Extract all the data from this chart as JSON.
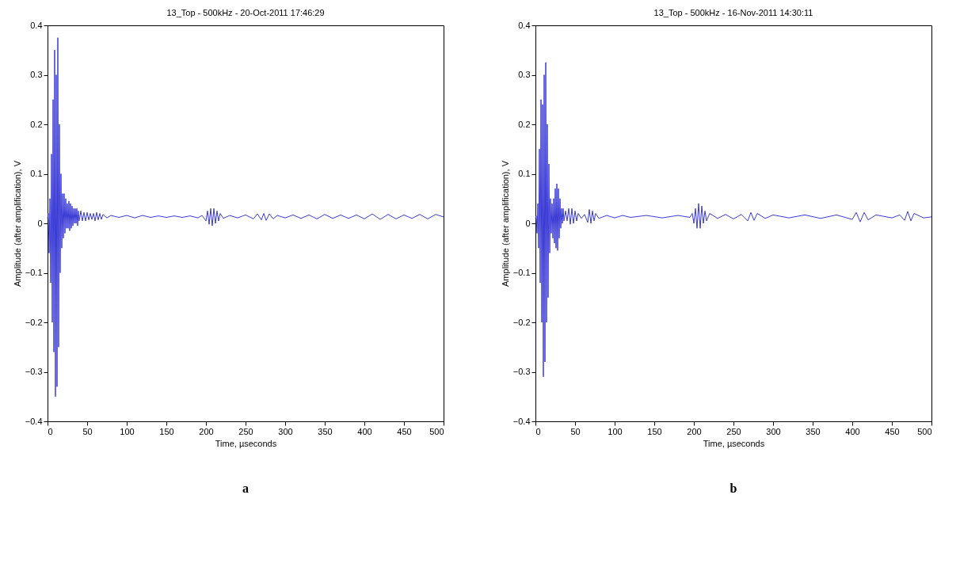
{
  "chart_data": [
    {
      "type": "line",
      "title": "13_Top - 500kHz - 20-Oct-2011 17:46:29",
      "xlabel": "Time, µseconds",
      "ylabel": "Amplitude (after amplification), V",
      "annotations": [
        "a"
      ],
      "grid": false,
      "marker": "none",
      "line_style": "solid",
      "xlim": [
        0,
        500
      ],
      "ylim": [
        -0.4,
        0.4
      ],
      "xticks": [
        0,
        50,
        100,
        150,
        200,
        250,
        300,
        350,
        400,
        450,
        500
      ],
      "yticks": [
        -0.4,
        -0.3,
        -0.2,
        -0.1,
        0,
        0.1,
        0.2,
        0.3,
        0.4
      ],
      "series": [
        {
          "color": "#3a3ad6",
          "x": [
            0,
            1,
            2,
            3,
            4,
            5,
            6,
            7,
            8,
            9,
            10,
            11,
            12,
            13,
            14,
            15,
            16,
            17,
            18,
            19,
            20,
            21,
            22,
            23,
            24,
            25,
            26,
            27,
            28,
            29,
            30,
            31,
            32,
            33,
            34,
            35,
            36,
            37,
            38,
            39,
            40,
            42,
            44,
            46,
            48,
            50,
            52,
            54,
            56,
            58,
            60,
            62,
            64,
            66,
            68,
            70,
            75,
            80,
            90,
            100,
            110,
            120,
            130,
            140,
            150,
            160,
            170,
            180,
            190,
            195,
            200,
            202,
            204,
            206,
            208,
            210,
            212,
            214,
            216,
            218,
            222,
            230,
            240,
            250,
            260,
            265,
            270,
            273,
            276,
            280,
            285,
            290,
            300,
            310,
            320,
            330,
            340,
            350,
            360,
            370,
            380,
            390,
            400,
            410,
            420,
            430,
            440,
            450,
            460,
            470,
            480,
            490,
            500
          ],
          "values": [
            0.01,
            0.02,
            -0.06,
            0.05,
            -0.12,
            0.14,
            -0.2,
            0.25,
            -0.26,
            0.35,
            -0.35,
            0.3,
            -0.33,
            0.375,
            -0.25,
            0.2,
            -0.1,
            0.1,
            -0.05,
            0.06,
            -0.03,
            0.06,
            -0.02,
            0.05,
            -0.01,
            0.04,
            -0.01,
            0.045,
            -0.015,
            0.04,
            -0.01,
            0.035,
            -0.005,
            0.03,
            0,
            0.03,
            0,
            0.03,
            -0.005,
            0.025,
            0.005,
            0.025,
            0.005,
            0.022,
            0.005,
            0.022,
            0.007,
            0.02,
            0.008,
            0.02,
            0.005,
            0.022,
            0.007,
            0.02,
            0.008,
            0.018,
            0.011,
            0.016,
            0.012,
            0.016,
            0.011,
            0.016,
            0.012,
            0.015,
            0.012,
            0.015,
            0.012,
            0.015,
            0.011,
            0.016,
            0.005,
            0.025,
            -0.002,
            0.03,
            -0.005,
            0.03,
            0,
            0.025,
            0.005,
            0.02,
            0.01,
            0.016,
            0.011,
            0.017,
            0.009,
            0.019,
            0.007,
            0.02,
            0.006,
            0.019,
            0.009,
            0.016,
            0.011,
            0.017,
            0.01,
            0.017,
            0.009,
            0.018,
            0.01,
            0.017,
            0.01,
            0.017,
            0.009,
            0.019,
            0.008,
            0.018,
            0.009,
            0.017,
            0.01,
            0.018,
            0.009,
            0.018,
            0.013
          ]
        }
      ]
    },
    {
      "type": "line",
      "title": "13_Top - 500kHz - 16-Nov-2011 14:30:11",
      "xlabel": "Time, µseconds",
      "ylabel": "Amplitude (after amplification), V",
      "annotations": [
        "b"
      ],
      "grid": false,
      "marker": "none",
      "line_style": "solid",
      "xlim": [
        0,
        500
      ],
      "ylim": [
        -0.4,
        0.4
      ],
      "xticks": [
        0,
        50,
        100,
        150,
        200,
        250,
        300,
        350,
        400,
        450,
        500
      ],
      "yticks": [
        -0.4,
        -0.3,
        -0.2,
        -0.1,
        0,
        0.1,
        0.2,
        0.3,
        0.4
      ],
      "series": [
        {
          "color": "#3a3ad6",
          "x": [
            0,
            1,
            2,
            3,
            4,
            5,
            6,
            7,
            8,
            9,
            10,
            11,
            12,
            13,
            14,
            15,
            16,
            17,
            18,
            19,
            20,
            21,
            22,
            23,
            24,
            25,
            26,
            27,
            28,
            29,
            30,
            31,
            32,
            33,
            34,
            35,
            36,
            38,
            40,
            42,
            44,
            46,
            48,
            50,
            52,
            54,
            58,
            62,
            66,
            68,
            70,
            72,
            74,
            76,
            80,
            90,
            100,
            110,
            120,
            140,
            160,
            180,
            195,
            198,
            200,
            202,
            204,
            206,
            208,
            210,
            212,
            214,
            216,
            220,
            230,
            240,
            250,
            260,
            268,
            272,
            276,
            280,
            290,
            300,
            320,
            340,
            360,
            380,
            400,
            405,
            410,
            415,
            420,
            430,
            450,
            460,
            466,
            470,
            474,
            478,
            490,
            500
          ],
          "values": [
            0.01,
            0.015,
            -0.02,
            0.04,
            -0.05,
            0.15,
            -0.12,
            0.25,
            -0.2,
            0.24,
            -0.31,
            0.3,
            -0.28,
            0.325,
            -0.2,
            0.2,
            -0.15,
            0.12,
            -0.06,
            0.05,
            -0.02,
            0.04,
            -0.03,
            0.05,
            -0.04,
            0.07,
            -0.05,
            0.08,
            -0.055,
            0.07,
            -0.03,
            0.05,
            -0.01,
            0.03,
            0,
            0.03,
            0.005,
            0.025,
            0.005,
            0.03,
            -0.002,
            0.03,
            0,
            0.025,
            0.005,
            0.02,
            0.01,
            0.018,
            0.002,
            0.028,
            0,
            0.025,
            0.005,
            0.02,
            0.01,
            0.016,
            0.011,
            0.016,
            0.012,
            0.016,
            0.011,
            0.016,
            0.012,
            0.02,
            0,
            0.03,
            -0.01,
            0.04,
            -0.01,
            0.035,
            0,
            0.025,
            0.005,
            0.02,
            0.01,
            0.018,
            0.009,
            0.018,
            0.005,
            0.022,
            0.006,
            0.02,
            0.01,
            0.017,
            0.011,
            0.017,
            0.01,
            0.017,
            0.008,
            0.022,
            0.003,
            0.022,
            0.007,
            0.017,
            0.011,
            0.017,
            0.006,
            0.024,
            0.005,
            0.02,
            0.011,
            0.013
          ]
        }
      ]
    }
  ]
}
